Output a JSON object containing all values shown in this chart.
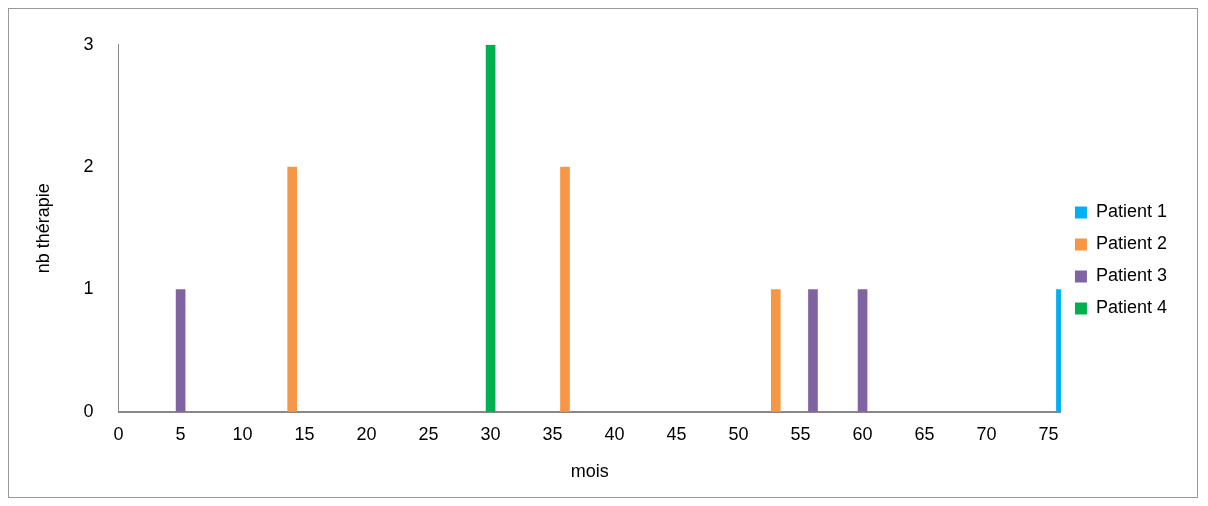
{
  "chart_data": {
    "type": "bar",
    "xlabel": "mois",
    "ylabel": "nb thérapie",
    "xlim": [
      0,
      76
    ],
    "xticks": [
      0,
      5,
      10,
      15,
      20,
      25,
      30,
      35,
      40,
      45,
      50,
      55,
      60,
      65,
      70,
      75
    ],
    "ylim": [
      0,
      3
    ],
    "yticks": [
      0,
      1,
      2,
      3
    ],
    "grid": false,
    "legend": "right",
    "series": [
      {
        "name": "Patient 1",
        "color": "#00b0f0",
        "x": [
          76
        ],
        "values": [
          1
        ]
      },
      {
        "name": "Patient 2",
        "color": "#f79646",
        "x": [
          14,
          36,
          53
        ],
        "values": [
          2,
          2,
          1
        ]
      },
      {
        "name": "Patient 3",
        "color": "#8064a2",
        "x": [
          5,
          56,
          60
        ],
        "values": [
          1,
          1,
          1
        ]
      },
      {
        "name": "Patient 4",
        "color": "#00b050",
        "x": [
          30
        ],
        "values": [
          3
        ]
      }
    ]
  }
}
